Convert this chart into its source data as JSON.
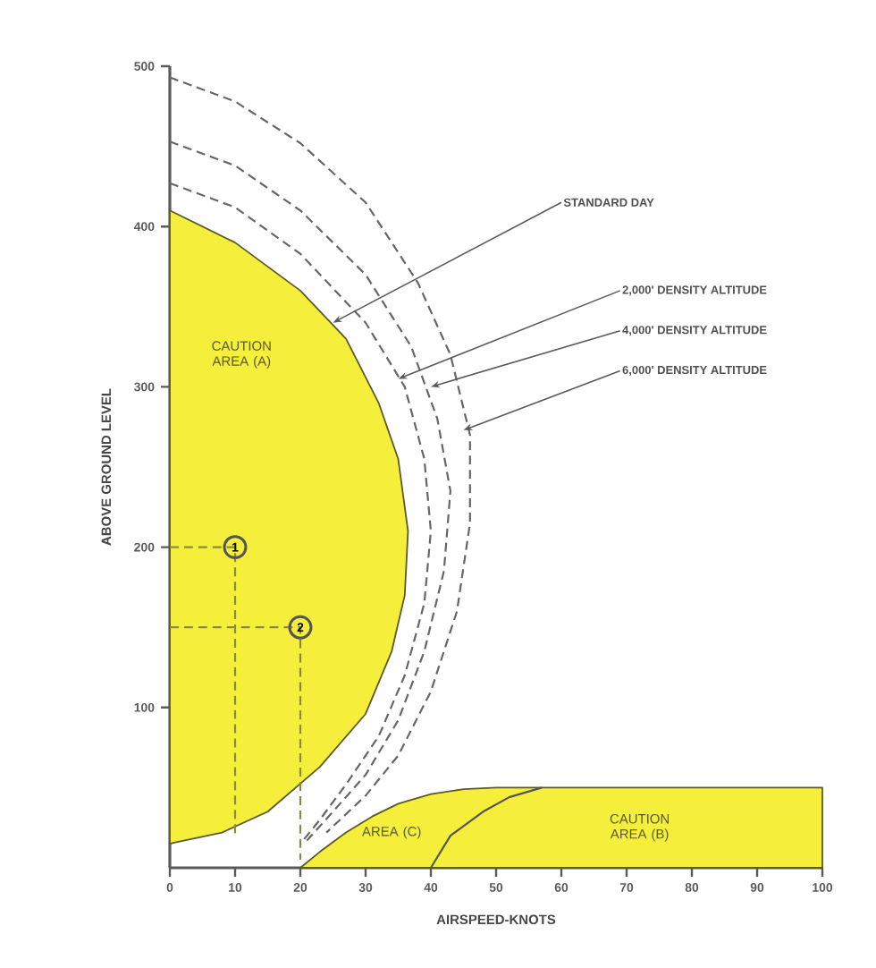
{
  "chart_data": {
    "type": "line",
    "xlabel": "AIRSPEED-KNOTS",
    "ylabel": "ABOVE GROUND LEVEL",
    "xlim": [
      0,
      100
    ],
    "ylim": [
      0,
      500
    ],
    "xticks": [
      0,
      10,
      20,
      30,
      40,
      50,
      60,
      70,
      80,
      90,
      100
    ],
    "yticks": [
      100,
      200,
      300,
      400,
      500
    ],
    "series": [
      {
        "type": "area",
        "color": "#f5ef3c",
        "x": [
          0,
          10,
          20,
          27,
          32,
          35,
          36.5,
          36,
          34,
          30,
          23,
          15,
          8,
          1,
          0
        ],
        "values": [
          410,
          390,
          360,
          330,
          290,
          255,
          210,
          170,
          135,
          96,
          63,
          35,
          22,
          16,
          15
        ]
      },
      {
        "type": "area",
        "color": "#f5ef3c",
        "x": [
          20,
          23,
          27,
          31,
          35,
          40,
          45,
          50,
          100,
          100
        ],
        "values": [
          0,
          10,
          22,
          32,
          40,
          46,
          49,
          50,
          50,
          0
        ]
      },
      {
        "color": "#555555",
        "line_style": "solid",
        "x": [
          40,
          43,
          48,
          52,
          57
        ],
        "values": [
          0,
          20,
          35,
          44,
          50
        ]
      },
      {
        "color": "#666666",
        "line_style": "dashed",
        "x": [
          0,
          10,
          20,
          30,
          36,
          39,
          40,
          39,
          36,
          32,
          27,
          23,
          20
        ],
        "values": [
          427,
          412,
          383,
          340,
          300,
          255,
          210,
          165,
          120,
          82,
          52,
          30,
          15
        ]
      },
      {
        "color": "#666666",
        "line_style": "dashed",
        "x": [
          0,
          10,
          20,
          30,
          37,
          41,
          43,
          42,
          39,
          35,
          30,
          25,
          21
        ],
        "values": [
          453,
          438,
          410,
          370,
          325,
          280,
          235,
          185,
          135,
          92,
          58,
          35,
          17
        ]
      },
      {
        "color": "#666666",
        "line_style": "dashed",
        "x": [
          0,
          10,
          20,
          30,
          38,
          43,
          46,
          46,
          44,
          40,
          35,
          30,
          24
        ],
        "values": [
          493,
          478,
          452,
          415,
          365,
          320,
          270,
          215,
          160,
          110,
          70,
          45,
          22
        ]
      },
      {
        "color": "#8a8a3a",
        "line_style": "dashed",
        "x": [
          0,
          10,
          10
        ],
        "values": [
          200,
          200,
          20
        ]
      },
      {
        "color": "#8a8a3a",
        "line_style": "dashed",
        "x": [
          0,
          20,
          20
        ],
        "values": [
          150,
          150,
          5
        ]
      },
      {
        "type": "scatter",
        "color": "#555555",
        "marker": "circle",
        "x": [
          10,
          20
        ],
        "values": [
          200,
          150
        ]
      }
    ],
    "annotations": [
      {
        "text": "STANDARD DAY",
        "x": 25,
        "y": 340
      },
      {
        "text": "2,000' DENSITY ALTITUDE",
        "x": 35,
        "y": 305
      },
      {
        "text": "4,000' DENSITY ALTITUDE",
        "x": 40,
        "y": 300
      },
      {
        "text": "6,000' DENSITY ALTITUDE",
        "x": 45,
        "y": 273
      },
      "CAUTION AREA (A)",
      "AREA (C)",
      "CAUTION AREA (B)",
      {
        "text": "1",
        "x": 10,
        "y": 200
      },
      {
        "text": "2",
        "x": 20,
        "y": 150
      }
    ]
  }
}
